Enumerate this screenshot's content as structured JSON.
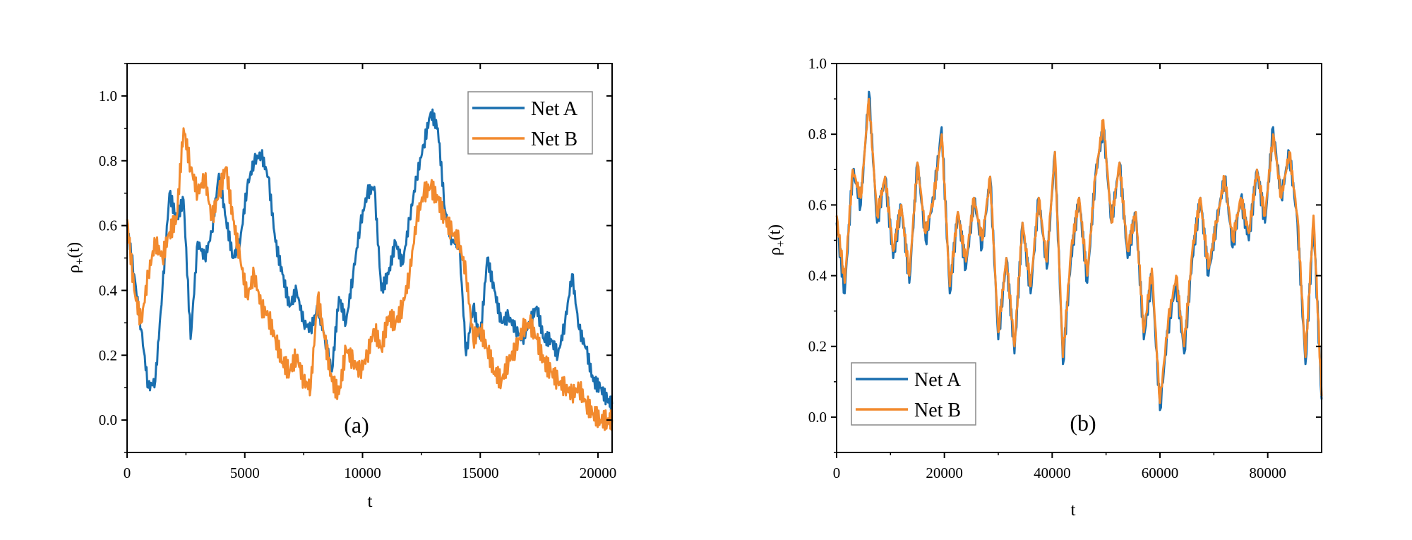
{
  "chart_data": [
    {
      "type": "line",
      "panel_label": "(a)",
      "xlabel": "t",
      "ylabel_main": "ρ",
      "ylabel_sub": "+",
      "ylabel_tail": "(t)",
      "xlim": [
        0,
        20600
      ],
      "ylim": [
        -0.1,
        1.1
      ],
      "xticks": [
        0,
        5000,
        10000,
        15000,
        20000
      ],
      "xtick_labels": [
        "0",
        "5000",
        "10000",
        "15000",
        "20000"
      ],
      "yticks": [
        0.0,
        0.2,
        0.4,
        0.6,
        0.8,
        1.0
      ],
      "ytick_labels": [
        "0.0",
        "0.2",
        "0.4",
        "0.6",
        "0.8",
        "1.0"
      ],
      "legend_position": "top-right",
      "series": [
        {
          "name": "Net A",
          "color": "#1a6faf",
          "x": [
            0,
            300,
            600,
            900,
            1200,
            1500,
            1800,
            2100,
            2400,
            2700,
            3000,
            3300,
            3600,
            3900,
            4200,
            4500,
            4800,
            5100,
            5400,
            5700,
            6000,
            6300,
            6600,
            6900,
            7200,
            7500,
            7800,
            8100,
            8400,
            8700,
            9000,
            9300,
            9600,
            9900,
            10200,
            10500,
            10800,
            11100,
            11400,
            11700,
            12000,
            12300,
            12600,
            12900,
            13200,
            13500,
            13800,
            14100,
            14400,
            14700,
            15000,
            15300,
            15600,
            15900,
            16200,
            16500,
            16800,
            17100,
            17400,
            17700,
            18000,
            18300,
            18600,
            18900,
            19200,
            19500,
            19800,
            20100,
            20400,
            20600
          ],
          "values": [
            0.6,
            0.45,
            0.28,
            0.1,
            0.12,
            0.4,
            0.7,
            0.62,
            0.68,
            0.25,
            0.55,
            0.5,
            0.58,
            0.76,
            0.62,
            0.5,
            0.55,
            0.72,
            0.8,
            0.82,
            0.75,
            0.55,
            0.45,
            0.35,
            0.4,
            0.3,
            0.28,
            0.35,
            0.25,
            0.15,
            0.38,
            0.3,
            0.45,
            0.6,
            0.7,
            0.72,
            0.4,
            0.45,
            0.55,
            0.48,
            0.62,
            0.75,
            0.85,
            0.95,
            0.9,
            0.65,
            0.55,
            0.55,
            0.2,
            0.35,
            0.25,
            0.5,
            0.4,
            0.3,
            0.32,
            0.28,
            0.25,
            0.3,
            0.35,
            0.25,
            0.25,
            0.2,
            0.3,
            0.45,
            0.28,
            0.22,
            0.12,
            0.1,
            0.06,
            0.05
          ]
        },
        {
          "name": "Net B",
          "color": "#f28a2e",
          "x": [
            0,
            300,
            600,
            900,
            1200,
            1500,
            1800,
            2100,
            2400,
            2700,
            3000,
            3300,
            3600,
            3900,
            4200,
            4500,
            4800,
            5100,
            5400,
            5700,
            6000,
            6300,
            6600,
            6900,
            7200,
            7500,
            7800,
            8100,
            8400,
            8700,
            9000,
            9300,
            9600,
            9900,
            10200,
            10500,
            10800,
            11100,
            11400,
            11700,
            12000,
            12300,
            12600,
            12900,
            13200,
            13500,
            13800,
            14100,
            14400,
            14700,
            15000,
            15300,
            15600,
            15900,
            16200,
            16500,
            16800,
            17100,
            17400,
            17700,
            18000,
            18300,
            18600,
            18900,
            19200,
            19500,
            19800,
            20100,
            20400,
            20600
          ],
          "values": [
            0.62,
            0.4,
            0.3,
            0.45,
            0.55,
            0.5,
            0.58,
            0.62,
            0.9,
            0.78,
            0.7,
            0.75,
            0.62,
            0.7,
            0.78,
            0.62,
            0.5,
            0.38,
            0.45,
            0.35,
            0.32,
            0.25,
            0.18,
            0.15,
            0.2,
            0.12,
            0.1,
            0.38,
            0.25,
            0.12,
            0.08,
            0.22,
            0.18,
            0.15,
            0.2,
            0.28,
            0.22,
            0.32,
            0.3,
            0.35,
            0.45,
            0.62,
            0.7,
            0.72,
            0.68,
            0.62,
            0.58,
            0.55,
            0.45,
            0.25,
            0.28,
            0.22,
            0.15,
            0.12,
            0.18,
            0.22,
            0.28,
            0.3,
            0.25,
            0.18,
            0.15,
            0.12,
            0.1,
            0.08,
            0.1,
            0.05,
            0.02,
            0.0,
            0.0,
            0.0
          ]
        }
      ]
    },
    {
      "type": "line",
      "panel_label": "(b)",
      "xlabel": "t",
      "ylabel_main": "ρ",
      "ylabel_sub": "+",
      "ylabel_tail": "(t)",
      "xlim": [
        0,
        90000
      ],
      "ylim": [
        -0.1,
        1.0
      ],
      "xticks": [
        0,
        20000,
        40000,
        60000,
        80000
      ],
      "xtick_labels": [
        "0",
        "20000",
        "40000",
        "60000",
        "80000"
      ],
      "yticks": [
        0.0,
        0.2,
        0.4,
        0.6,
        0.8,
        1.0
      ],
      "ytick_labels": [
        "0.0",
        "0.2",
        "0.4",
        "0.6",
        "0.8",
        "1.0"
      ],
      "legend_position": "bottom-left",
      "series": [
        {
          "name": "Net A",
          "color": "#1a6faf",
          "x": [
            0,
            1500,
            3000,
            4500,
            6000,
            7500,
            9000,
            10500,
            12000,
            13500,
            15000,
            16500,
            18000,
            19500,
            21000,
            22500,
            24000,
            25500,
            27000,
            28500,
            30000,
            31500,
            33000,
            34500,
            36000,
            37500,
            39000,
            40500,
            42000,
            43500,
            45000,
            46500,
            48000,
            49500,
            51000,
            52500,
            54000,
            55500,
            57000,
            58500,
            60000,
            61500,
            63000,
            64500,
            66000,
            67500,
            69000,
            70500,
            72000,
            73500,
            75000,
            76500,
            78000,
            79500,
            81000,
            82500,
            84000,
            85500,
            87000,
            88500,
            90000
          ],
          "values": [
            0.55,
            0.35,
            0.7,
            0.6,
            0.92,
            0.55,
            0.68,
            0.45,
            0.6,
            0.38,
            0.72,
            0.5,
            0.62,
            0.82,
            0.35,
            0.58,
            0.42,
            0.62,
            0.48,
            0.68,
            0.22,
            0.45,
            0.18,
            0.55,
            0.35,
            0.62,
            0.42,
            0.75,
            0.15,
            0.45,
            0.62,
            0.38,
            0.68,
            0.82,
            0.55,
            0.72,
            0.45,
            0.58,
            0.22,
            0.4,
            0.02,
            0.25,
            0.38,
            0.18,
            0.45,
            0.62,
            0.4,
            0.55,
            0.68,
            0.48,
            0.62,
            0.5,
            0.7,
            0.55,
            0.82,
            0.62,
            0.75,
            0.55,
            0.15,
            0.55,
            0.05
          ]
        },
        {
          "name": "Net B",
          "color": "#f28a2e",
          "x": [
            0,
            1500,
            3000,
            4500,
            6000,
            7500,
            9000,
            10500,
            12000,
            13500,
            15000,
            16500,
            18000,
            19500,
            21000,
            22500,
            24000,
            25500,
            27000,
            28500,
            30000,
            31500,
            33000,
            34500,
            36000,
            37500,
            39000,
            40500,
            42000,
            43500,
            45000,
            46500,
            48000,
            49500,
            51000,
            52500,
            54000,
            55500,
            57000,
            58500,
            60000,
            61500,
            63000,
            64500,
            66000,
            67500,
            69000,
            70500,
            72000,
            73500,
            75000,
            76500,
            78000,
            79500,
            81000,
            82500,
            84000,
            85500,
            87000,
            88500,
            90000
          ],
          "values": [
            0.57,
            0.38,
            0.7,
            0.62,
            0.9,
            0.57,
            0.68,
            0.47,
            0.6,
            0.4,
            0.72,
            0.52,
            0.62,
            0.8,
            0.37,
            0.58,
            0.44,
            0.62,
            0.5,
            0.68,
            0.24,
            0.45,
            0.2,
            0.55,
            0.37,
            0.62,
            0.44,
            0.75,
            0.17,
            0.47,
            0.62,
            0.4,
            0.68,
            0.84,
            0.55,
            0.72,
            0.47,
            0.58,
            0.24,
            0.42,
            0.04,
            0.27,
            0.4,
            0.2,
            0.47,
            0.62,
            0.42,
            0.55,
            0.68,
            0.5,
            0.62,
            0.52,
            0.7,
            0.57,
            0.8,
            0.62,
            0.75,
            0.57,
            0.17,
            0.57,
            0.06
          ]
        }
      ]
    }
  ]
}
